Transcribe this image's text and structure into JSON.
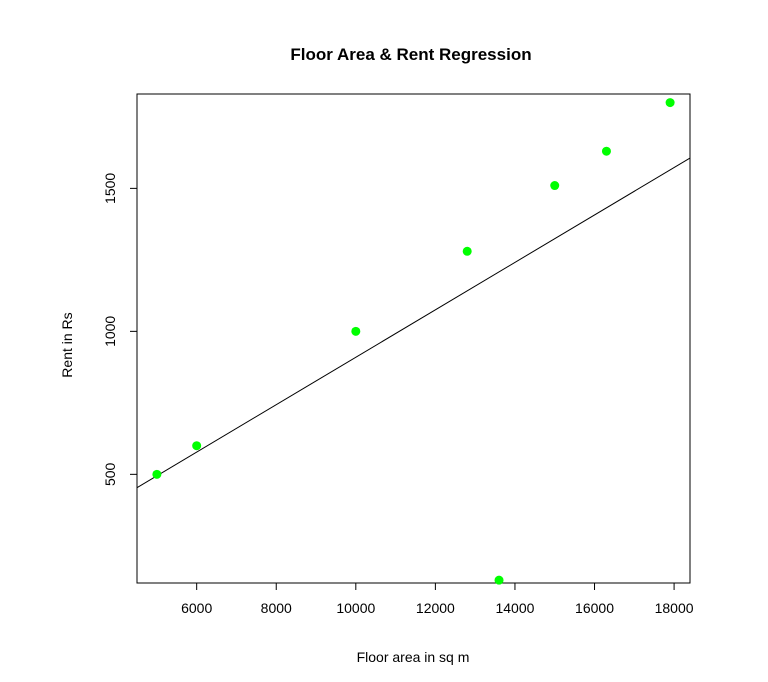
{
  "chart_data": {
    "type": "scatter",
    "title": "Floor Area & Rent Regression",
    "xlabel": "Floor area in sq m",
    "ylabel": "Rent in Rs",
    "xlim": [
      4500,
      18400
    ],
    "ylim": [
      120,
      1830
    ],
    "x_ticks": [
      6000,
      8000,
      10000,
      12000,
      14000,
      16000,
      18000
    ],
    "y_ticks": [
      500,
      1000,
      1500
    ],
    "points": [
      {
        "x": 5000,
        "y": 500
      },
      {
        "x": 6000,
        "y": 600
      },
      {
        "x": 10000,
        "y": 1000
      },
      {
        "x": 12800,
        "y": 1280
      },
      {
        "x": 13600,
        "y": 130
      },
      {
        "x": 15000,
        "y": 1510
      },
      {
        "x": 16300,
        "y": 1630
      },
      {
        "x": 17900,
        "y": 1800
      }
    ],
    "regression_line": {
      "intercept": 80.1,
      "slope": 0.08293
    },
    "point_color": "#00ff00",
    "line_color": "#000000",
    "grid": false,
    "legend": "none"
  }
}
